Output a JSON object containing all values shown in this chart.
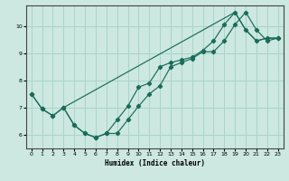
{
  "xlabel": "Humidex (Indice chaleur)",
  "bg_color": "#cce8e0",
  "grid_color": "#aad4cc",
  "line_color": "#1a6b5a",
  "xlim": [
    -0.5,
    23.5
  ],
  "ylim": [
    5.5,
    10.75
  ],
  "yticks": [
    6,
    7,
    8,
    9,
    10
  ],
  "xticks": [
    0,
    1,
    2,
    3,
    4,
    5,
    6,
    7,
    8,
    9,
    10,
    11,
    12,
    13,
    14,
    15,
    16,
    17,
    18,
    19,
    20,
    21,
    22,
    23
  ],
  "line1_x": [
    0,
    1,
    2,
    3,
    4,
    5,
    6,
    7,
    8,
    9,
    10,
    11,
    12,
    13,
    14,
    15,
    16,
    17,
    18,
    19,
    20,
    21,
    22,
    23
  ],
  "line1_y": [
    7.5,
    6.95,
    6.7,
    7.0,
    6.35,
    6.05,
    5.9,
    6.05,
    6.05,
    6.55,
    7.05,
    7.5,
    7.8,
    8.5,
    8.65,
    8.8,
    9.05,
    9.05,
    9.45,
    10.05,
    10.5,
    9.85,
    9.45,
    9.55
  ],
  "line2_x": [
    0,
    1,
    2,
    3,
    4,
    5,
    6,
    7,
    8,
    9,
    10,
    11,
    12,
    13,
    14,
    15,
    16,
    17,
    18,
    19,
    20,
    21,
    22,
    23
  ],
  "line2_y": [
    7.5,
    6.95,
    6.7,
    7.0,
    6.35,
    6.05,
    5.9,
    6.05,
    6.55,
    7.05,
    7.75,
    7.9,
    8.5,
    8.65,
    8.75,
    8.85,
    9.1,
    9.45,
    10.05,
    10.5,
    9.85,
    9.45,
    9.55,
    9.55
  ],
  "line3_x": [
    3,
    19,
    20,
    21,
    22,
    23
  ],
  "line3_y": [
    7.0,
    10.5,
    9.85,
    9.45,
    9.55,
    9.55
  ]
}
